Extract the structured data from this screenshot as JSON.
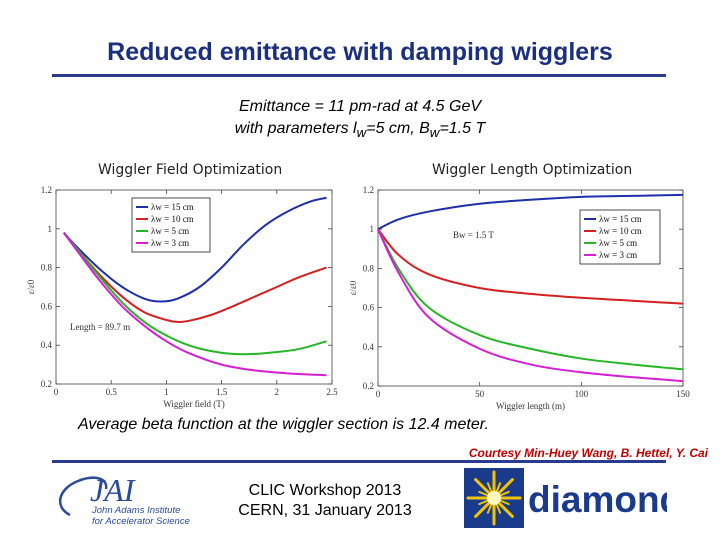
{
  "slide": {
    "title": "Reduced emittance with damping wigglers",
    "subtitle_line1": "Emittance = 11 pm-rad at 4.5 GeV",
    "subtitle_line2_pre": "with parameters l",
    "subtitle_line2_sub1": "w",
    "subtitle_line2_mid": "=5 cm, B",
    "subtitle_line2_sub2": "w",
    "subtitle_line2_post": "=1.5 T",
    "beta_note": "Average beta function at the wiggler section is 12.4 meter.",
    "courtesy": "Courtesy Min-Huey Wang, B. Hettel, Y. Cai",
    "workshop_line1": "CLIC Workshop 2013",
    "workshop_line2": "CERN, 31 January 2013"
  },
  "logos": {
    "jai_letters": "JAI",
    "jai_line1": "John Adams Institute",
    "jai_line2": "for Accelerator Science",
    "diamond_word": "diamond",
    "jai_color": "#2a4a9a",
    "diamond_color": "#1a3a8c",
    "diamond_burst_color": "#f2c400"
  },
  "chart_data": [
    {
      "type": "line",
      "title": "Wiggler Field Optimization",
      "xlabel": "Wiggler field (T)",
      "ylabel": "ε/ε0",
      "xlim": [
        0,
        2.5
      ],
      "ylim": [
        0.2,
        1.2
      ],
      "xticks": [
        "0",
        "0.5",
        "1",
        "1.5",
        "2",
        "2.5"
      ],
      "yticks": [
        "0.2",
        "0.4",
        "0.6",
        "0.8",
        "1",
        "1.2"
      ],
      "annotation": "Length = 89.7 m",
      "legend_position": "top-center",
      "series": [
        {
          "name": "λw = 15 cm",
          "color": "#1f2fa8",
          "x": [
            0.07,
            0.2,
            0.4,
            0.6,
            0.8,
            0.95,
            1.1,
            1.3,
            1.5,
            1.7,
            1.9,
            2.1,
            2.3,
            2.45
          ],
          "y": [
            0.98,
            0.9,
            0.79,
            0.7,
            0.64,
            0.625,
            0.64,
            0.7,
            0.8,
            0.92,
            1.02,
            1.09,
            1.14,
            1.16
          ]
        },
        {
          "name": "λw = 10 cm",
          "color": "#d42020",
          "x": [
            0.07,
            0.2,
            0.4,
            0.6,
            0.8,
            1.0,
            1.1,
            1.2,
            1.4,
            1.6,
            1.8,
            2.0,
            2.2,
            2.45
          ],
          "y": [
            0.98,
            0.89,
            0.76,
            0.65,
            0.57,
            0.53,
            0.52,
            0.525,
            0.555,
            0.6,
            0.65,
            0.7,
            0.75,
            0.8
          ]
        },
        {
          "name": "λw = 5 cm",
          "color": "#27b527",
          "x": [
            0.07,
            0.2,
            0.4,
            0.6,
            0.8,
            1.0,
            1.2,
            1.4,
            1.6,
            1.8,
            2.0,
            2.2,
            2.45
          ],
          "y": [
            0.98,
            0.89,
            0.75,
            0.62,
            0.52,
            0.45,
            0.4,
            0.37,
            0.355,
            0.355,
            0.365,
            0.38,
            0.42
          ]
        },
        {
          "name": "λw = 3 cm",
          "color": "#d41fd4",
          "x": [
            0.07,
            0.2,
            0.4,
            0.6,
            0.8,
            1.0,
            1.2,
            1.5,
            1.8,
            2.1,
            2.45
          ],
          "y": [
            0.98,
            0.88,
            0.73,
            0.6,
            0.5,
            0.42,
            0.36,
            0.3,
            0.27,
            0.255,
            0.245
          ]
        }
      ]
    },
    {
      "type": "line",
      "title": "Wiggler Length Optimization",
      "xlabel": "Wiggler length (m)",
      "ylabel": "ε/ε0",
      "xlim": [
        0,
        150
      ],
      "ylim": [
        0.2,
        1.2
      ],
      "xticks": [
        "0",
        "50",
        "100",
        "150"
      ],
      "yticks": [
        "0.2",
        "0.4",
        "0.6",
        "0.8",
        "1",
        "1.2"
      ],
      "annotation": "Bw = 1.5 T",
      "legend_position": "center-right",
      "series": [
        {
          "name": "λw = 15 cm",
          "color": "#1f2fa8",
          "x": [
            0,
            10,
            25,
            50,
            75,
            100,
            125,
            150
          ],
          "y": [
            1.0,
            1.05,
            1.09,
            1.13,
            1.15,
            1.165,
            1.17,
            1.175
          ]
        },
        {
          "name": "λw = 10 cm",
          "color": "#d42020",
          "x": [
            0,
            10,
            25,
            50,
            75,
            100,
            125,
            150
          ],
          "y": [
            1.0,
            0.87,
            0.77,
            0.7,
            0.67,
            0.65,
            0.635,
            0.62
          ]
        },
        {
          "name": "λw = 5 cm",
          "color": "#27b527",
          "x": [
            0,
            10,
            25,
            50,
            75,
            100,
            125,
            150
          ],
          "y": [
            1.0,
            0.8,
            0.6,
            0.46,
            0.39,
            0.34,
            0.31,
            0.285
          ]
        },
        {
          "name": "λw = 3 cm",
          "color": "#d41fd4",
          "x": [
            0,
            10,
            25,
            50,
            75,
            100,
            125,
            150
          ],
          "y": [
            1.0,
            0.78,
            0.55,
            0.39,
            0.31,
            0.27,
            0.245,
            0.225
          ]
        }
      ]
    }
  ]
}
